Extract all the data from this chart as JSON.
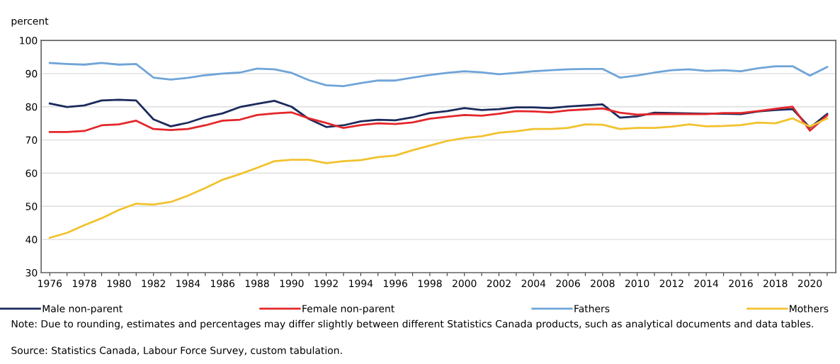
{
  "chart_data": {
    "type": "line",
    "ylabel": "percent",
    "x": [
      1976,
      1977,
      1978,
      1979,
      1980,
      1981,
      1982,
      1983,
      1984,
      1985,
      1986,
      1987,
      1988,
      1989,
      1990,
      1991,
      1992,
      1993,
      1994,
      1995,
      1996,
      1997,
      1998,
      1999,
      2000,
      2001,
      2002,
      2003,
      2004,
      2005,
      2006,
      2007,
      2008,
      2009,
      2010,
      2011,
      2012,
      2013,
      2014,
      2015,
      2016,
      2017,
      2018,
      2019,
      2020,
      2021
    ],
    "series": [
      {
        "name": "Male non-parent",
        "color": "#1b2a5c",
        "values": [
          81.0,
          79.9,
          80.4,
          81.9,
          82.1,
          81.9,
          76.2,
          74.1,
          75.2,
          76.9,
          78.0,
          79.9,
          80.9,
          81.8,
          80.0,
          76.3,
          73.9,
          74.4,
          75.6,
          76.1,
          75.9,
          76.8,
          78.1,
          78.7,
          79.6,
          79.0,
          79.3,
          79.8,
          79.8,
          79.6,
          80.1,
          80.4,
          80.7,
          76.7,
          77.1,
          78.2,
          78.1,
          78.0,
          77.9,
          77.9,
          77.8,
          78.6,
          79.0,
          79.3,
          73.7,
          77.8
        ]
      },
      {
        "name": "Female non-parent",
        "color": "#e3262a",
        "values": [
          72.4,
          72.4,
          72.7,
          74.4,
          74.7,
          75.8,
          73.3,
          73.0,
          73.3,
          74.4,
          75.8,
          76.1,
          77.5,
          78.0,
          78.3,
          76.5,
          75.1,
          73.6,
          74.5,
          75.0,
          74.8,
          75.3,
          76.4,
          77.0,
          77.5,
          77.3,
          77.9,
          78.7,
          78.6,
          78.3,
          78.9,
          79.2,
          79.5,
          78.2,
          77.6,
          77.8,
          77.8,
          77.8,
          77.8,
          78.1,
          78.1,
          78.7,
          79.4,
          80.0,
          72.8,
          77.4
        ]
      },
      {
        "name": "Fathers",
        "color": "#6fa4d8",
        "values": [
          93.2,
          92.9,
          92.7,
          93.2,
          92.7,
          92.9,
          88.8,
          88.2,
          88.7,
          89.5,
          90.0,
          90.3,
          91.5,
          91.3,
          90.2,
          88.0,
          86.5,
          86.2,
          87.1,
          87.9,
          87.9,
          88.8,
          89.6,
          90.2,
          90.7,
          90.4,
          89.8,
          90.2,
          90.7,
          91.0,
          91.3,
          91.4,
          91.4,
          88.8,
          89.4,
          90.3,
          91.0,
          91.3,
          90.8,
          91.0,
          90.7,
          91.6,
          92.2,
          92.2,
          89.4,
          92.0
        ]
      },
      {
        "name": "Mothers",
        "color": "#f2c22e",
        "values": [
          40.5,
          42.0,
          44.3,
          46.4,
          48.9,
          50.8,
          50.5,
          51.3,
          53.2,
          55.5,
          58.0,
          59.7,
          61.6,
          63.6,
          64.0,
          64.0,
          63.0,
          63.6,
          63.9,
          64.8,
          65.3,
          66.9,
          68.3,
          69.7,
          70.6,
          71.1,
          72.2,
          72.6,
          73.3,
          73.3,
          73.6,
          74.7,
          74.6,
          73.3,
          73.6,
          73.6,
          74.0,
          74.7,
          74.1,
          74.2,
          74.5,
          75.2,
          75.0,
          76.5,
          74.0,
          76.5
        ]
      }
    ],
    "xlim": [
      1975.5,
      2021.5
    ],
    "xticks": [
      1976,
      {
        "value": 1977,
        "label": null
      },
      1978,
      {
        "value": 1979,
        "label": null
      },
      1980,
      {
        "value": 1981,
        "label": null
      },
      1982,
      {
        "value": 1983,
        "label": null
      },
      1984,
      {
        "value": 1985,
        "label": null
      },
      1986,
      {
        "value": 1987,
        "label": null
      },
      1988,
      {
        "value": 1989,
        "label": null
      },
      1990,
      {
        "value": 1991,
        "label": null
      },
      1992,
      {
        "value": 1993,
        "label": null
      },
      1994,
      {
        "value": 1995,
        "label": null
      },
      1996,
      {
        "value": 1997,
        "label": null
      },
      1998,
      {
        "value": 1999,
        "label": null
      },
      2000,
      {
        "value": 2001,
        "label": null
      },
      2002,
      {
        "value": 2003,
        "label": null
      },
      2004,
      {
        "value": 2005,
        "label": null
      },
      2006,
      {
        "value": 2007,
        "label": null
      },
      2008,
      {
        "value": 2009,
        "label": null
      },
      2010,
      {
        "value": 2011,
        "label": null
      },
      2012,
      {
        "value": 2013,
        "label": null
      },
      2014,
      {
        "value": 2015,
        "label": null
      },
      2016,
      {
        "value": 2017,
        "label": null
      },
      2018,
      {
        "value": 2019,
        "label": null
      },
      2020,
      {
        "value": 2021,
        "label": null
      }
    ],
    "ylim": [
      30,
      100
    ],
    "yticks": [
      30,
      40,
      50,
      60,
      70,
      80,
      90,
      100
    ],
    "grid": "y",
    "legend": "bottom",
    "marker": "none",
    "line_style": "solid",
    "annotations": [
      "Note: Due to rounding, estimates and percentages may differ slightly between different Statistics Canada products, such as analytical documents and data tables.",
      "Source: Statistics Canada, Labour Force Survey, custom tabulation."
    ]
  }
}
